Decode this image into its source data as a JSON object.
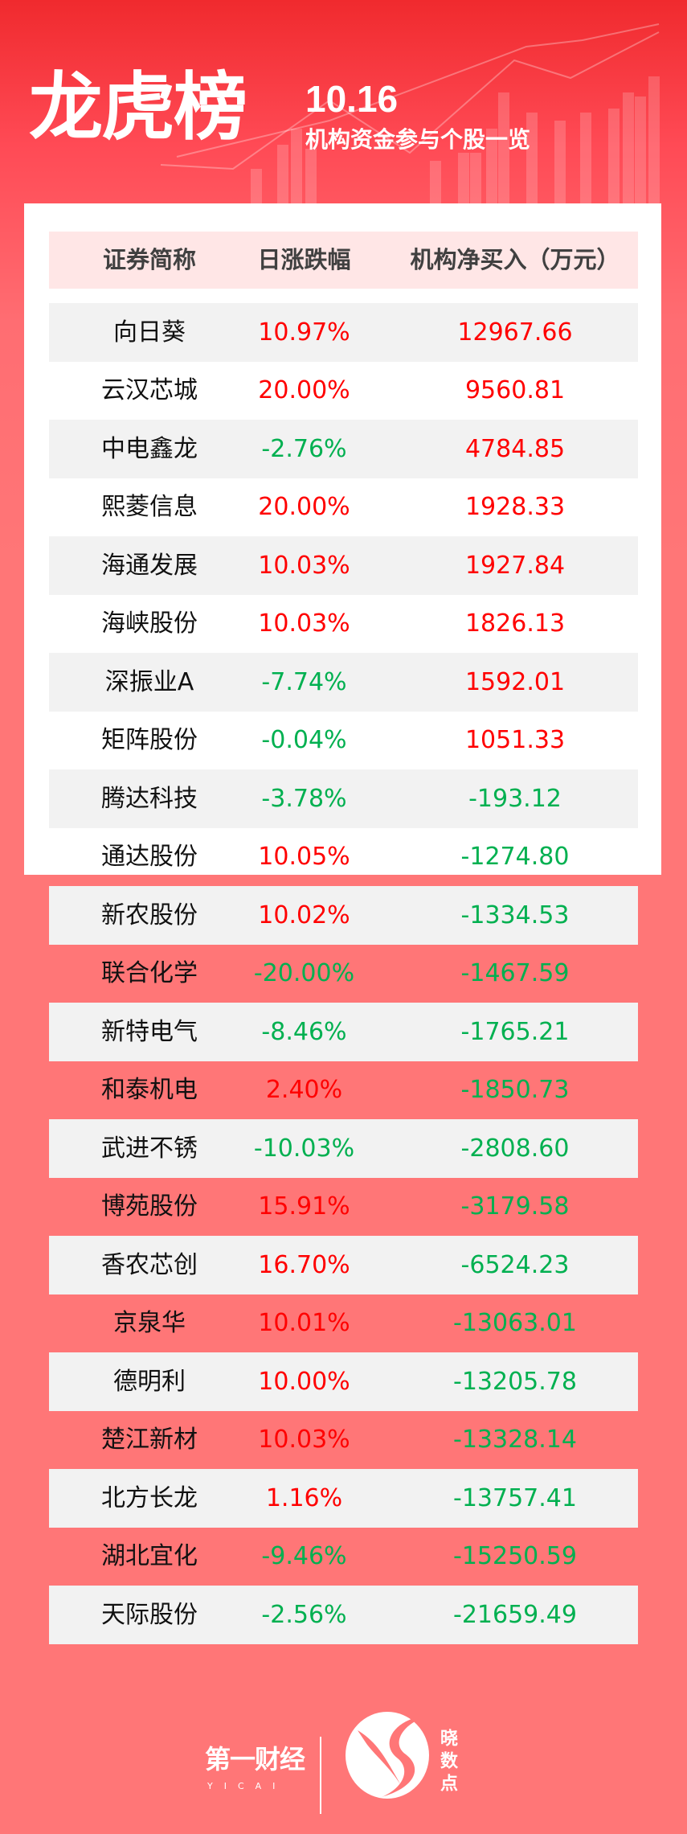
{
  "header": {
    "title": "龙虎榜",
    "date": "10.16",
    "subtitle": "机构资金参与个股一览"
  },
  "table": {
    "columns": [
      "证券简称",
      "日涨跌幅",
      "机构净买入（万元）"
    ],
    "rows": [
      [
        "向日葵",
        "10.97%",
        "12967.66"
      ],
      [
        "云汉芯城",
        "20.00%",
        "9560.81"
      ],
      [
        "中电鑫龙",
        "-2.76%",
        "4784.85"
      ],
      [
        "熙菱信息",
        "20.00%",
        "1928.33"
      ],
      [
        "海通发展",
        "10.03%",
        "1927.84"
      ],
      [
        "海峡股份",
        "10.03%",
        "1826.13"
      ],
      [
        "深振业A",
        "-7.74%",
        "1592.01"
      ],
      [
        "矩阵股份",
        "-0.04%",
        "1051.33"
      ],
      [
        "腾达科技",
        "-3.78%",
        "-193.12"
      ],
      [
        "通达股份",
        "10.05%",
        "-1274.80"
      ],
      [
        "新农股份",
        "10.02%",
        "-1334.53"
      ],
      [
        "联合化学",
        "-20.00%",
        "-1467.59"
      ],
      [
        "新特电气",
        "-8.46%",
        "-1765.21"
      ],
      [
        "和泰机电",
        "2.40%",
        "-1850.73"
      ],
      [
        "武进不锈",
        "-10.03%",
        "-2808.60"
      ],
      [
        "博苑股份",
        "15.91%",
        "-3179.58"
      ],
      [
        "香农芯创",
        "16.70%",
        "-6524.23"
      ],
      [
        "京泉华",
        "10.01%",
        "-13063.01"
      ],
      [
        "德明利",
        "10.00%",
        "-13205.78"
      ],
      [
        "楚江新材",
        "10.03%",
        "-13328.14"
      ],
      [
        "北方长龙",
        "1.16%",
        "-13757.41"
      ],
      [
        "湖北宜化",
        "-9.46%",
        "-15250.59"
      ],
      [
        "天际股份",
        "-2.56%",
        "-21659.49"
      ]
    ]
  },
  "footer": {
    "brand_left": "第一财经",
    "brand_left_sub": "YICAI",
    "brand_right": "晓数点"
  },
  "colors": {
    "positive": "#ff0000",
    "negative": "#00b050",
    "header_bg": "#ffe6e6",
    "stripe": "#f2f2f2",
    "background": "#ff7677"
  }
}
